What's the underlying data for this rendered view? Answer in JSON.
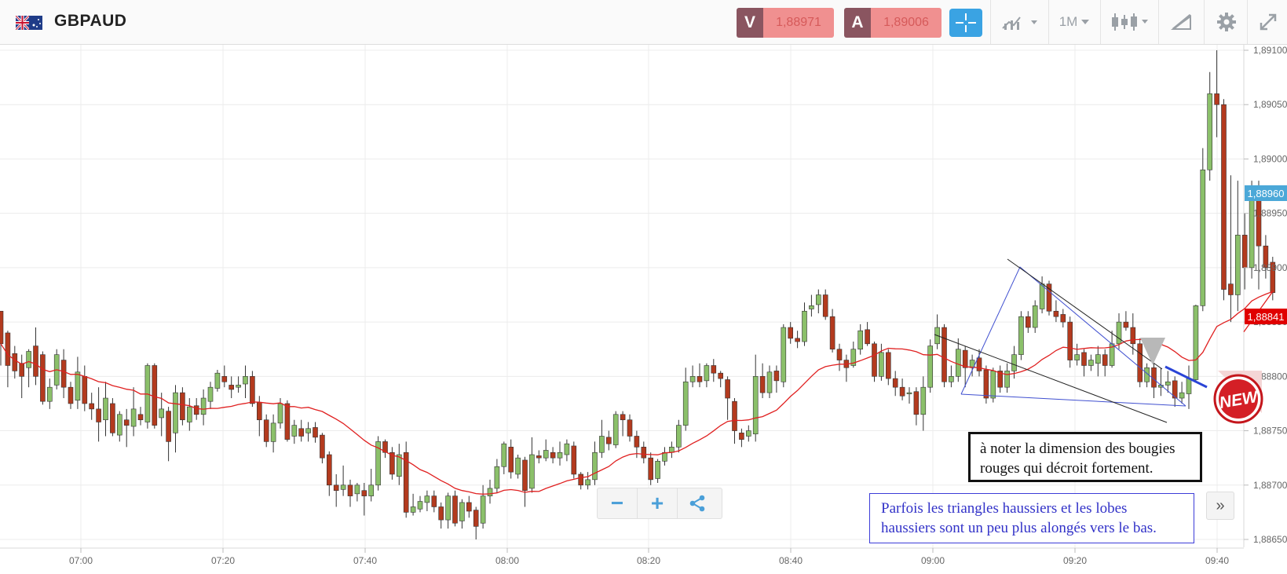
{
  "header": {
    "symbol": "GBPAUD",
    "sell_letter": "V",
    "sell_price": "1,88971",
    "buy_letter": "A",
    "buy_price": "1,89006",
    "timeframe": "1M",
    "icons": [
      "flag-icon",
      "crosshair-icon",
      "chart-type-icon",
      "candlestick-icon",
      "drawing-tools-icon",
      "gear-icon",
      "fullscreen-icon"
    ]
  },
  "controls": {
    "zoom_out": "−",
    "zoom_in": "+",
    "share": "share-icon",
    "scroll_right": "»"
  },
  "annotations": {
    "note1": "à noter la dimension des bougies rouges qui décroit fortement.",
    "note2": "Parfois les triangles haussiers et les lobes haussiers sont un peu plus alongés vers le bas.",
    "badge": "NEW"
  },
  "colors": {
    "bull": "#8bc06a",
    "bear": "#b33a1e",
    "ma": "#e02020",
    "current_price_bg": "#4ba8d8",
    "ma_price_bg": "#e00000"
  },
  "chart_data": {
    "type": "candlestick",
    "x_ticks": [
      "07:00",
      "07:20",
      "07:40",
      "08:00",
      "08:20",
      "08:40",
      "09:00",
      "09:20",
      "09:40"
    ],
    "y_ticks": [
      "1,89100",
      "1,89050",
      "1,89000",
      "1,88950",
      "1,88900",
      "1,88850",
      "1,88800",
      "1,88750",
      "1,88700",
      "1,88650"
    ],
    "ylim": [
      1.8864,
      1.8911
    ],
    "current_price": "1,88960",
    "ma_price": "1,88841",
    "candles": [
      [
        1.8886,
        1.8883,
        1.88858,
        1.8881
      ],
      [
        1.8884,
        1.8881,
        1.88842,
        1.8879
      ],
      [
        1.88821,
        1.88805,
        1.88828,
        1.88798
      ],
      [
        1.88812,
        1.888,
        1.8882,
        1.8878
      ],
      [
        1.88808,
        1.88823,
        1.88825,
        1.8879
      ],
      [
        1.88828,
        1.888,
        1.88845,
        1.88792
      ],
      [
        1.8882,
        1.88777,
        1.88823,
        1.88774
      ],
      [
        1.88777,
        1.8879,
        1.88798,
        1.8877
      ],
      [
        1.88792,
        1.8882,
        1.88825,
        1.88788
      ],
      [
        1.88815,
        1.8879,
        1.88825,
        1.8878
      ],
      [
        1.8879,
        1.88775,
        1.88795,
        1.8877
      ],
      [
        1.88778,
        1.88804,
        1.88818,
        1.8877
      ],
      [
        1.888,
        1.88775,
        1.8881,
        1.88768
      ],
      [
        1.88775,
        1.8877,
        1.88785,
        1.8876
      ],
      [
        1.8877,
        1.88758,
        1.8879,
        1.8874
      ],
      [
        1.8876,
        1.8878,
        1.88795,
        1.88745
      ],
      [
        1.88775,
        1.88748,
        1.8878,
        1.88745
      ],
      [
        1.88746,
        1.88765,
        1.88768,
        1.8874
      ],
      [
        1.8876,
        1.88755,
        1.8877,
        1.88735
      ],
      [
        1.88754,
        1.8877,
        1.8879,
        1.88745
      ],
      [
        1.88765,
        1.8876,
        1.88772,
        1.88755
      ],
      [
        1.88758,
        1.8881,
        1.88812,
        1.88752
      ],
      [
        1.8881,
        1.88755,
        1.88812,
        1.88752
      ],
      [
        1.88762,
        1.8877,
        1.88785,
        1.88745
      ],
      [
        1.88768,
        1.8874,
        1.88772,
        1.88722
      ],
      [
        1.88748,
        1.88785,
        1.88792,
        1.8873
      ],
      [
        1.88785,
        1.8876,
        1.8879,
        1.88755
      ],
      [
        1.88758,
        1.88772,
        1.8878,
        1.8875
      ],
      [
        1.88773,
        1.88765,
        1.8878,
        1.8876
      ],
      [
        1.88765,
        1.8878,
        1.88788,
        1.88755
      ],
      [
        1.88777,
        1.8879,
        1.88795,
        1.8877
      ],
      [
        1.88789,
        1.88803,
        1.88806,
        1.88786
      ],
      [
        1.888,
        1.88795,
        1.8881,
        1.8879
      ],
      [
        1.88792,
        1.88788,
        1.888,
        1.8878
      ],
      [
        1.8879,
        1.88792,
        1.888,
        1.88785
      ],
      [
        1.88793,
        1.888,
        1.8881,
        1.8878
      ],
      [
        1.888,
        1.88775,
        1.88805,
        1.88772
      ],
      [
        1.88776,
        1.8876,
        1.88782,
        1.88745
      ],
      [
        1.8876,
        1.8874,
        1.88765,
        1.88735
      ],
      [
        1.8874,
        1.88757,
        1.88765,
        1.8873
      ],
      [
        1.88757,
        1.88775,
        1.8878,
        1.88752
      ],
      [
        1.88775,
        1.88742,
        1.88778,
        1.8874
      ],
      [
        1.88745,
        1.88755,
        1.8876,
        1.88738
      ],
      [
        1.88752,
        1.88745,
        1.8876,
        1.8874
      ],
      [
        1.88748,
        1.88752,
        1.88758,
        1.8874
      ],
      [
        1.88753,
        1.88744,
        1.88758,
        1.88739
      ],
      [
        1.88746,
        1.88725,
        1.88748,
        1.8872
      ],
      [
        1.88728,
        1.887,
        1.88731,
        1.8869
      ],
      [
        1.887,
        1.88695,
        1.8871,
        1.8868
      ],
      [
        1.88696,
        1.887,
        1.88718,
        1.8869
      ],
      [
        1.887,
        1.8869,
        1.88705,
        1.8868
      ],
      [
        1.88692,
        1.887,
        1.88702,
        1.88685
      ],
      [
        1.88695,
        1.8869,
        1.88702,
        1.88672
      ],
      [
        1.8869,
        1.887,
        1.88715,
        1.88685
      ],
      [
        1.887,
        1.8874,
        1.88745,
        1.88695
      ],
      [
        1.8874,
        1.8873,
        1.88742,
        1.88725
      ],
      [
        1.8873,
        1.8871,
        1.88735,
        1.88705
      ],
      [
        1.88708,
        1.88728,
        1.88738,
        1.887
      ],
      [
        1.8873,
        1.88675,
        1.8874,
        1.8867
      ],
      [
        1.88675,
        1.8868,
        1.88692,
        1.88672
      ],
      [
        1.88678,
        1.88685,
        1.8869,
        1.88675
      ],
      [
        1.88684,
        1.8869,
        1.88695,
        1.88676
      ],
      [
        1.8869,
        1.8868,
        1.88695,
        1.88675
      ],
      [
        1.8868,
        1.88668,
        1.88684,
        1.8866
      ],
      [
        1.88668,
        1.8869,
        1.88693,
        1.8866
      ],
      [
        1.8869,
        1.88665,
        1.88695,
        1.88662
      ],
      [
        1.88667,
        1.88684,
        1.88687,
        1.8866
      ],
      [
        1.88684,
        1.88676,
        1.8869,
        1.8867
      ],
      [
        1.88677,
        1.88662,
        1.8868,
        1.8865
      ],
      [
        1.88665,
        1.8869,
        1.887,
        1.8866
      ],
      [
        1.8869,
        1.88697,
        1.88705,
        1.88683
      ],
      [
        1.88697,
        1.88717,
        1.88724,
        1.88693
      ],
      [
        1.88717,
        1.88738,
        1.8874,
        1.8871
      ],
      [
        1.88735,
        1.88712,
        1.88742,
        1.88706
      ],
      [
        1.8871,
        1.88725,
        1.88728,
        1.88706
      ],
      [
        1.88723,
        1.88695,
        1.88726,
        1.8868
      ],
      [
        1.88697,
        1.88728,
        1.88744,
        1.88693
      ],
      [
        1.88727,
        1.88725,
        1.88732,
        1.8872
      ],
      [
        1.88725,
        1.88732,
        1.88742,
        1.88722
      ],
      [
        1.8873,
        1.88725,
        1.88735,
        1.8872
      ],
      [
        1.88725,
        1.8873,
        1.8874,
        1.88718
      ],
      [
        1.88728,
        1.88738,
        1.88742,
        1.88722
      ],
      [
        1.88736,
        1.8871,
        1.8874,
        1.88706
      ],
      [
        1.8871,
        1.887,
        1.88712,
        1.88696
      ],
      [
        1.887,
        1.88705,
        1.88712,
        1.88696
      ],
      [
        1.88705,
        1.8873,
        1.8874,
        1.887
      ],
      [
        1.8873,
        1.88745,
        1.8876,
        1.88725
      ],
      [
        1.88744,
        1.88738,
        1.8875,
        1.88732
      ],
      [
        1.88737,
        1.88765,
        1.88768,
        1.88734
      ],
      [
        1.88765,
        1.8876,
        1.88768,
        1.88745
      ],
      [
        1.8876,
        1.88745,
        1.88765,
        1.8874
      ],
      [
        1.88745,
        1.88735,
        1.8875,
        1.88725
      ],
      [
        1.88735,
        1.88725,
        1.8874,
        1.8872
      ],
      [
        1.88725,
        1.88705,
        1.8873,
        1.887
      ],
      [
        1.88706,
        1.88722,
        1.88724,
        1.88702
      ],
      [
        1.88722,
        1.8873,
        1.88735,
        1.88718
      ],
      [
        1.8873,
        1.88735,
        1.8874,
        1.88725
      ],
      [
        1.88735,
        1.88755,
        1.8876,
        1.8873
      ],
      [
        1.88755,
        1.88795,
        1.88808,
        1.8875
      ],
      [
        1.88795,
        1.888,
        1.8881,
        1.8879
      ],
      [
        1.888,
        1.88795,
        1.88812,
        1.8879
      ],
      [
        1.88796,
        1.8881,
        1.88812,
        1.8879
      ],
      [
        1.8881,
        1.88803,
        1.88816,
        1.88795
      ],
      [
        1.88803,
        1.88798,
        1.88805,
        1.8879
      ],
      [
        1.88797,
        1.8878,
        1.888,
        1.8876
      ],
      [
        1.88777,
        1.8875,
        1.8878,
        1.88738
      ],
      [
        1.88748,
        1.88742,
        1.88752,
        1.88735
      ],
      [
        1.88745,
        1.8875,
        1.88755,
        1.8874
      ],
      [
        1.88747,
        1.888,
        1.8882,
        1.8874
      ],
      [
        1.888,
        1.88785,
        1.88812,
        1.8878
      ],
      [
        1.88785,
        1.88804,
        1.8881,
        1.8878
      ],
      [
        1.88805,
        1.88796,
        1.8881,
        1.88785
      ],
      [
        1.88795,
        1.88845,
        1.88848,
        1.8879
      ],
      [
        1.88845,
        1.88835,
        1.8885,
        1.8883
      ],
      [
        1.88835,
        1.88832,
        1.88842,
        1.88826
      ],
      [
        1.88832,
        1.8886,
        1.88868,
        1.88828
      ],
      [
        1.88862,
        1.88865,
        1.88875,
        1.88855
      ],
      [
        1.88866,
        1.88875,
        1.8888,
        1.88858
      ],
      [
        1.88875,
        1.88855,
        1.8888,
        1.88852
      ],
      [
        1.88855,
        1.88825,
        1.88862,
        1.88822
      ],
      [
        1.88825,
        1.88815,
        1.8883,
        1.88805
      ],
      [
        1.88815,
        1.88808,
        1.8882,
        1.88795
      ],
      [
        1.8881,
        1.88825,
        1.88832,
        1.88808
      ],
      [
        1.88825,
        1.88842,
        1.88848,
        1.8882
      ],
      [
        1.88843,
        1.8883,
        1.8885,
        1.88828
      ],
      [
        1.8883,
        1.888,
        1.88832,
        1.88795
      ],
      [
        1.888,
        1.88822,
        1.8883,
        1.88796
      ],
      [
        1.88822,
        1.88798,
        1.88825,
        1.88792
      ],
      [
        1.88798,
        1.8879,
        1.88805,
        1.88782
      ],
      [
        1.8879,
        1.88782,
        1.88798,
        1.88778
      ],
      [
        1.88784,
        1.88785,
        1.8879,
        1.88775
      ],
      [
        1.88786,
        1.88765,
        1.8879,
        1.88755
      ],
      [
        1.88765,
        1.8879,
        1.888,
        1.8875
      ],
      [
        1.8879,
        1.88828,
        1.88834,
        1.88785
      ],
      [
        1.8883,
        1.88845,
        1.88857,
        1.88825
      ],
      [
        1.88845,
        1.88795,
        1.88848,
        1.8879
      ],
      [
        1.88795,
        1.888,
        1.8881,
        1.8879
      ],
      [
        1.888,
        1.88825,
        1.88835,
        1.88795
      ],
      [
        1.88824,
        1.88808,
        1.88828,
        1.8879
      ],
      [
        1.88808,
        1.88815,
        1.8882,
        1.888
      ],
      [
        1.88817,
        1.88805,
        1.88825,
        1.888
      ],
      [
        1.88806,
        1.8878,
        1.8881,
        1.88775
      ],
      [
        1.8878,
        1.88805,
        1.88808,
        1.88776
      ],
      [
        1.88805,
        1.8879,
        1.8881,
        1.88785
      ],
      [
        1.8879,
        1.88805,
        1.88812,
        1.88785
      ],
      [
        1.88805,
        1.8882,
        1.88828,
        1.88798
      ],
      [
        1.8882,
        1.88855,
        1.8886,
        1.88815
      ],
      [
        1.88855,
        1.88845,
        1.8886,
        1.8884
      ],
      [
        1.88845,
        1.88865,
        1.8887,
        1.8884
      ],
      [
        1.88862,
        1.88885,
        1.88892,
        1.88858
      ],
      [
        1.88885,
        1.8886,
        1.88888,
        1.88856
      ],
      [
        1.8886,
        1.88855,
        1.8887,
        1.8885
      ],
      [
        1.88857,
        1.8885,
        1.88862,
        1.88845
      ],
      [
        1.8885,
        1.88815,
        1.88855,
        1.88808
      ],
      [
        1.88815,
        1.8882,
        1.8883,
        1.8881
      ],
      [
        1.88822,
        1.8881,
        1.88825,
        1.888
      ],
      [
        1.8881,
        1.88815,
        1.8882,
        1.88805
      ],
      [
        1.88812,
        1.8882,
        1.88828,
        1.888
      ],
      [
        1.8882,
        1.8881,
        1.88825,
        1.888
      ],
      [
        1.8881,
        1.8883,
        1.88842,
        1.88808
      ],
      [
        1.8883,
        1.8885,
        1.88858,
        1.88825
      ],
      [
        1.8885,
        1.88845,
        1.8886,
        1.88842
      ],
      [
        1.88845,
        1.8883,
        1.88858,
        1.8882
      ],
      [
        1.8883,
        1.88795,
        1.88835,
        1.8879
      ],
      [
        1.88795,
        1.88808,
        1.88812,
        1.8879
      ],
      [
        1.88808,
        1.8879,
        1.88812,
        1.8878
      ],
      [
        1.8879,
        1.88792,
        1.88808,
        1.88782
      ],
      [
        1.88792,
        1.88795,
        1.88805,
        1.88785
      ],
      [
        1.88796,
        1.8878,
        1.888,
        1.88772
      ],
      [
        1.8878,
        1.88785,
        1.88795,
        1.88775
      ],
      [
        1.88784,
        1.88798,
        1.8881,
        1.8877
      ],
      [
        1.88797,
        1.88865,
        1.88866,
        1.88795
      ],
      [
        1.88865,
        1.8899,
        1.8901,
        1.8886
      ],
      [
        1.8899,
        1.8906,
        1.8908,
        1.8898
      ],
      [
        1.8906,
        1.8905,
        1.891,
        1.8902
      ],
      [
        1.8905,
        1.8888,
        1.89055,
        1.8887
      ],
      [
        1.88885,
        1.88875,
        1.88985,
        1.8885
      ],
      [
        1.88875,
        1.8893,
        1.8898,
        1.8886
      ],
      [
        1.8893,
        1.889,
        1.8895,
        1.8888
      ],
      [
        1.889,
        1.8897,
        1.8898,
        1.8889
      ],
      [
        1.88975,
        1.8892,
        1.8898,
        1.8888
      ],
      [
        1.8892,
        1.889,
        1.8893,
        1.8889
      ],
      [
        1.88905,
        1.88877,
        1.8891,
        1.8887
      ]
    ]
  }
}
